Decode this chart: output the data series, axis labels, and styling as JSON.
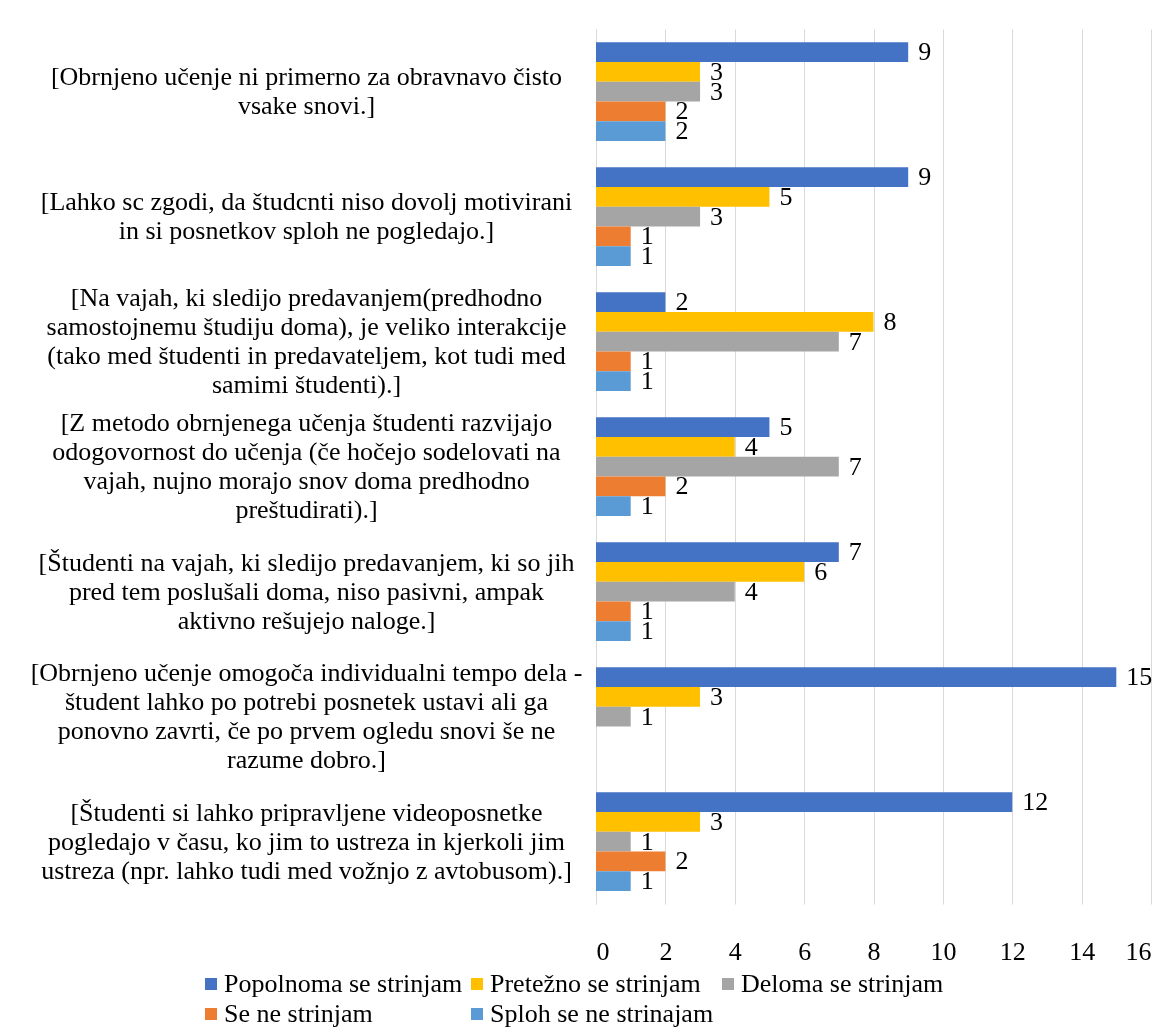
{
  "chart_data": {
    "type": "bar",
    "orientation": "horizontal",
    "categories": [
      "[Obrnjeno učenje ni primerno za obravnavo čisto vsake snovi.]",
      "[Lahko sc zgodi, da študcnti niso dovolj motivirani in si posnetkov sploh ne pogledajo.]",
      "[Na vajah, ki sledijo predavanjem(predhodno samostojnemu študiju doma), je veliko interakcije (tako med študenti in predavateljem, kot tudi med samimi študenti).]",
      "[Z metodo obrnjenega učenja študenti razvijajo odogovornost do učenja (če hočejo sodelovati na vajah, nujno morajo snov doma predhodno preštudirati).]",
      "[Študenti na vajah, ki sledijo predavanjem, ki so jih pred tem poslušali doma, niso pasivni, ampak aktivno rešujejo naloge.]",
      "[Obrnjeno učenje omogoča individualni tempo dela - študent lahko po potrebi posnetek ustavi ali ga ponovno zavrti, če po prvem ogledu snovi še ne razume dobro.]",
      "[Študenti si lahko pripravljene videoposnetke pogledajo v času, ko jim to ustreza in kjerkoli jim ustreza (npr. lahko tudi med vožnjo z avtobusom).]"
    ],
    "series": [
      {
        "name": "Popolnoma se strinjam",
        "color": "#4472c4",
        "values": [
          9,
          9,
          2,
          5,
          7,
          15,
          12
        ]
      },
      {
        "name": "Pretežno se strinjam",
        "color": "#ffc000",
        "values": [
          3,
          5,
          8,
          4,
          6,
          3,
          3
        ]
      },
      {
        "name": "Deloma se strinjam",
        "color": "#a5a5a5",
        "values": [
          3,
          3,
          7,
          7,
          4,
          1,
          1
        ]
      },
      {
        "name": "Se ne strinjam",
        "color": "#ed7d31",
        "values": [
          2,
          1,
          1,
          2,
          1,
          null,
          2
        ]
      },
      {
        "name": "Sploh se ne strinajam",
        "color": "#5b9bd5",
        "values": [
          2,
          1,
          1,
          1,
          1,
          null,
          1
        ]
      }
    ],
    "xlim": [
      0,
      16
    ],
    "xticks": [
      0,
      2,
      4,
      6,
      8,
      10,
      12,
      14,
      16
    ],
    "grid": "x",
    "legend": "bottom",
    "data_labels": true
  }
}
